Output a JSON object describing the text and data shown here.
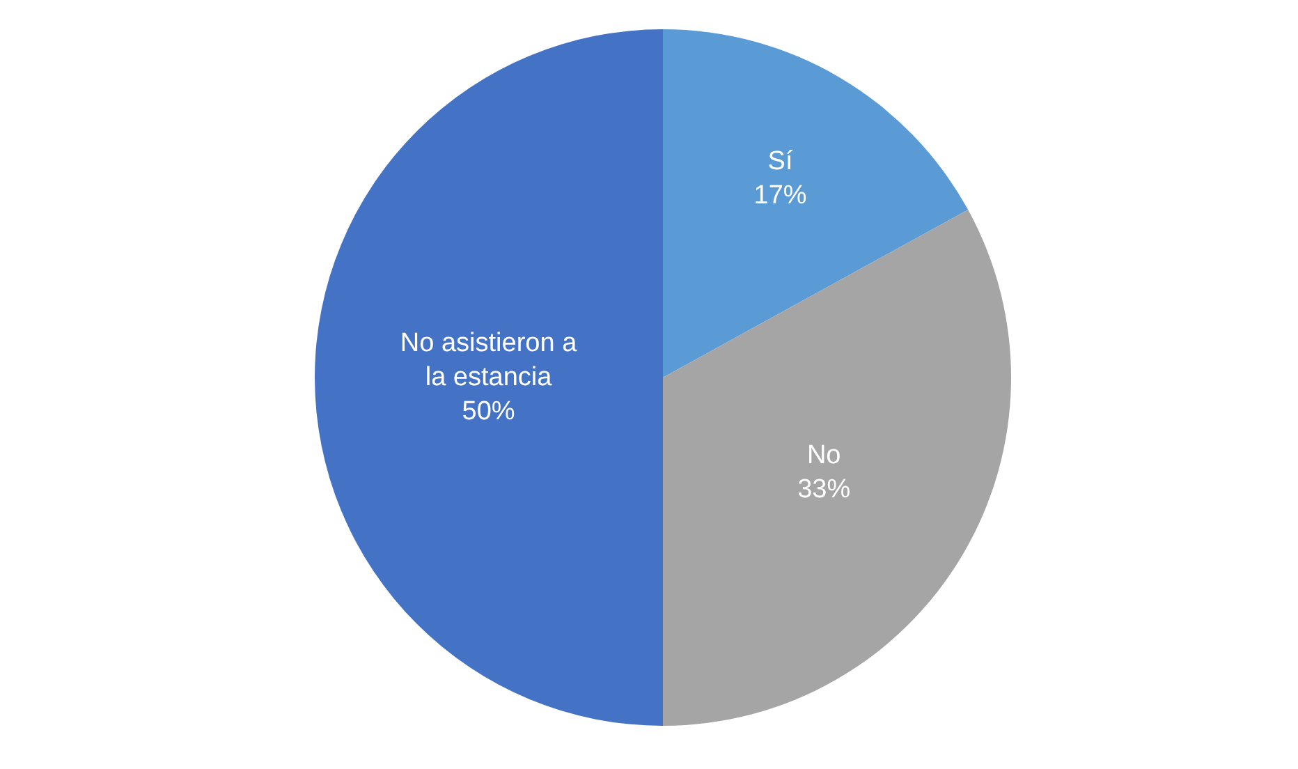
{
  "chart_data": {
    "type": "pie",
    "categories": [
      "Sí",
      "No",
      "No asistieron a la estancia"
    ],
    "values": [
      17,
      33,
      50
    ],
    "colors": [
      "#5b9bd5",
      "#a5a5a5",
      "#4472c4"
    ],
    "value_labels": [
      "17%",
      "33%",
      "50%"
    ],
    "legend": false
  }
}
